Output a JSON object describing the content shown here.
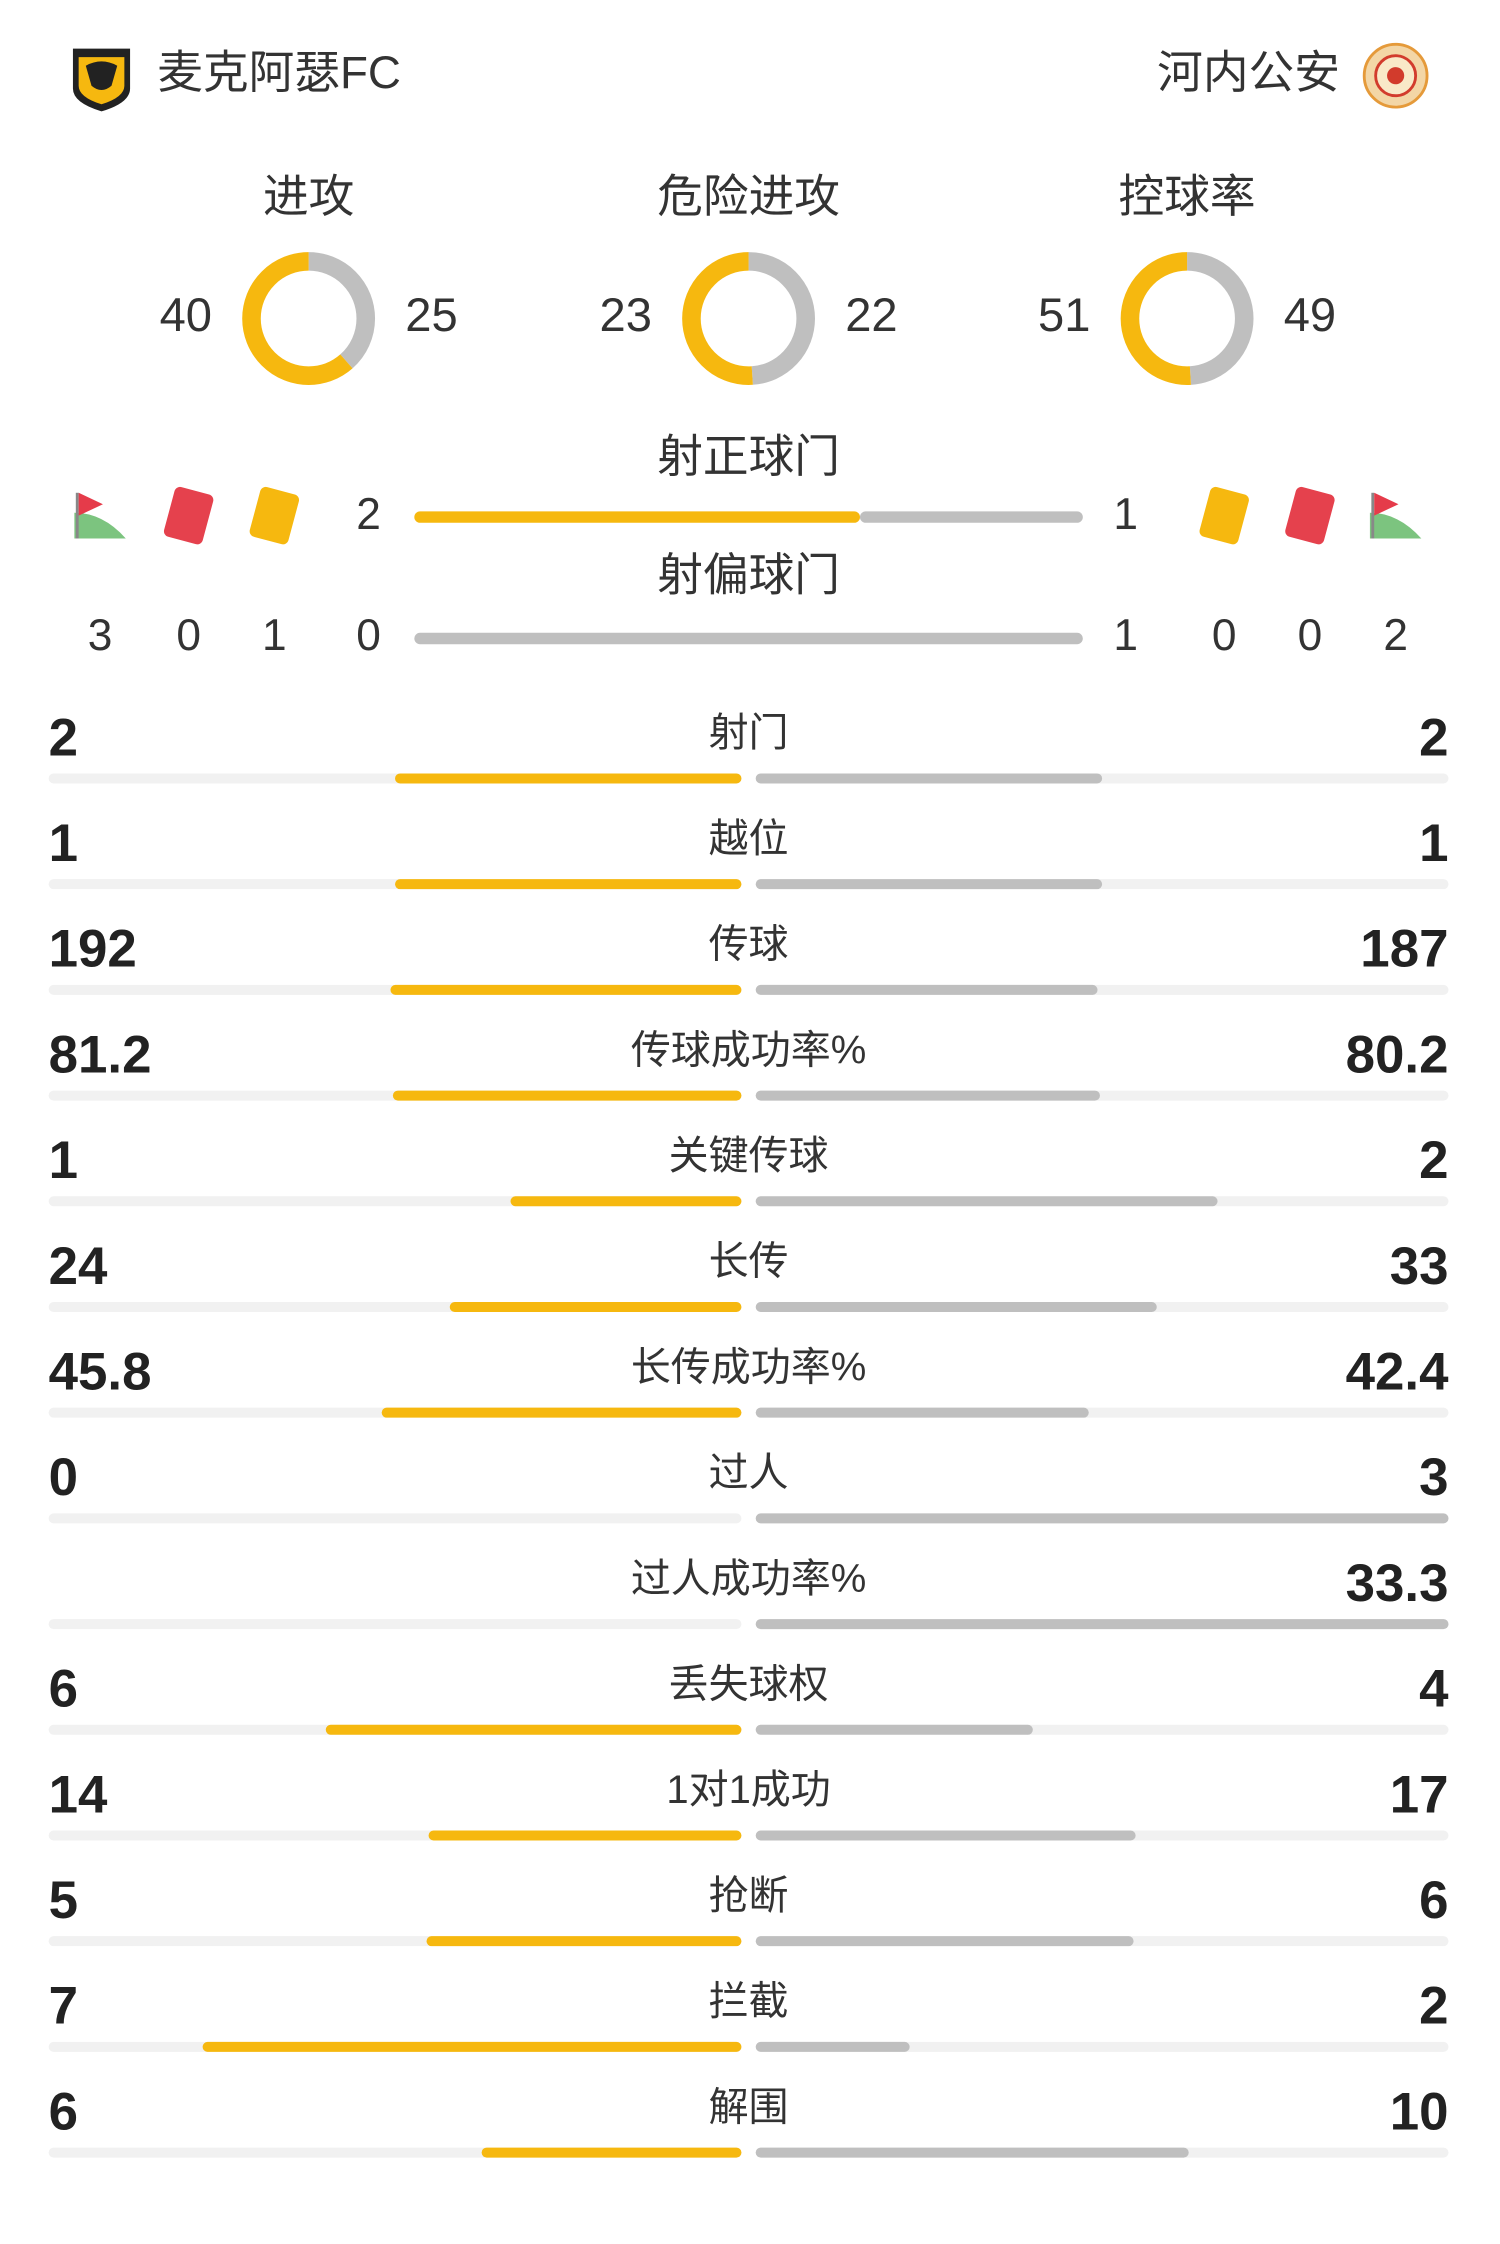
{
  "header": {
    "home_team": "麦克阿瑟FC",
    "away_team": "河内公安"
  },
  "colors": {
    "home": "#f6b80f",
    "away": "#bfbfbf"
  },
  "donuts": [
    {
      "title": "进攻",
      "home": 40,
      "away": 25
    },
    {
      "title": "危险进攻",
      "home": 23,
      "away": 22
    },
    {
      "title": "控球率",
      "home": 51,
      "away": 49
    }
  ],
  "discipline": {
    "home": {
      "corners": 3,
      "red_cards": 0,
      "yellow_cards": 1
    },
    "away": {
      "yellow_cards": 0,
      "red_cards": 0,
      "corners": 2
    }
  },
  "shot_bars": [
    {
      "title": "射正球门",
      "home": 2,
      "away": 1
    },
    {
      "title": "射偏球门",
      "home": 0,
      "away": 1
    }
  ],
  "stats": [
    {
      "label": "射门",
      "home": 2,
      "away": 2
    },
    {
      "label": "越位",
      "home": 1,
      "away": 1
    },
    {
      "label": "传球",
      "home": 192,
      "away": 187
    },
    {
      "label": "传球成功率%",
      "home": 81.2,
      "away": 80.2
    },
    {
      "label": "关键传球",
      "home": 1,
      "away": 2
    },
    {
      "label": "长传",
      "home": 24,
      "away": 33
    },
    {
      "label": "长传成功率%",
      "home": 45.8,
      "away": 42.4
    },
    {
      "label": "过人",
      "home": 0,
      "away": 3
    },
    {
      "label": "过人成功率%",
      "home": null,
      "away": 33.3
    },
    {
      "label": "丢失球权",
      "home": 6,
      "away": 4
    },
    {
      "label": "1对1成功",
      "home": 14,
      "away": 17
    },
    {
      "label": "抢断",
      "home": 5,
      "away": 6
    },
    {
      "label": "拦截",
      "home": 7,
      "away": 2
    },
    {
      "label": "解围",
      "home": 6,
      "away": 10
    }
  ]
}
